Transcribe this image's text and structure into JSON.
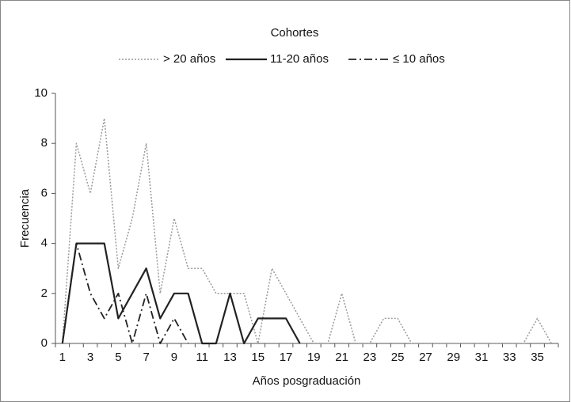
{
  "chart_data": {
    "type": "line",
    "legend_title": "Cohortes",
    "x_label": "Años posgraduación",
    "y_label": "Frecuencia",
    "categories": [
      "1",
      null,
      "3",
      null,
      "5",
      null,
      "7",
      null,
      "9",
      null,
      "11",
      null,
      "13",
      null,
      "15",
      null,
      "17",
      null,
      "19",
      null,
      "21",
      null,
      "23",
      null,
      "25",
      null,
      "27",
      null,
      "29",
      null,
      "31",
      null,
      "33",
      null,
      "35",
      null
    ],
    "series": [
      {
        "name": "> 20 años",
        "color": "#9a9a9a",
        "dash": "dotted",
        "values": [
          0,
          8,
          6,
          9,
          3,
          5,
          8,
          2,
          5,
          3,
          3,
          2,
          2,
          2,
          0,
          3,
          2,
          1,
          0,
          0,
          2,
          0,
          0,
          1,
          1,
          0,
          0,
          0,
          0,
          0,
          0,
          0,
          0,
          0,
          1,
          0
        ]
      },
      {
        "name": "11-20 años",
        "color": "#222222",
        "dash": "solid",
        "values": [
          0,
          4,
          4,
          4,
          1,
          2,
          3,
          1,
          2,
          2,
          0,
          0,
          2,
          0,
          1,
          1,
          1,
          0,
          null,
          null,
          null,
          null,
          null,
          null,
          null,
          null,
          null,
          null,
          null,
          null,
          null,
          null,
          null,
          null,
          null,
          null
        ]
      },
      {
        "name": "≤ 10 años",
        "color": "#222222",
        "dash": "dashdot",
        "values": [
          0,
          4,
          2,
          1,
          2,
          0,
          2,
          0,
          1,
          0,
          null,
          null,
          null,
          null,
          null,
          null,
          null,
          null,
          null,
          null,
          null,
          null,
          null,
          null,
          null,
          null,
          null,
          null,
          null,
          null,
          null,
          null,
          null,
          null,
          null,
          null
        ]
      }
    ],
    "ylim": [
      0,
      10
    ],
    "yticks": [
      0,
      2,
      4,
      6,
      8,
      10
    ],
    "grid": false
  }
}
